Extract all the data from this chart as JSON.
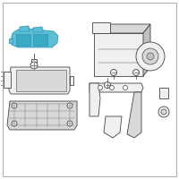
{
  "bg_color": "#ffffff",
  "border_color": "#b0b0b0",
  "highlight_color": "#5bbfd6",
  "highlight_edge": "#3a9ab8",
  "line_color": "#444444",
  "fill_light": "#f0f0f0",
  "fill_mid": "#d8d8d8",
  "fill_dark": "#c0c0c0"
}
